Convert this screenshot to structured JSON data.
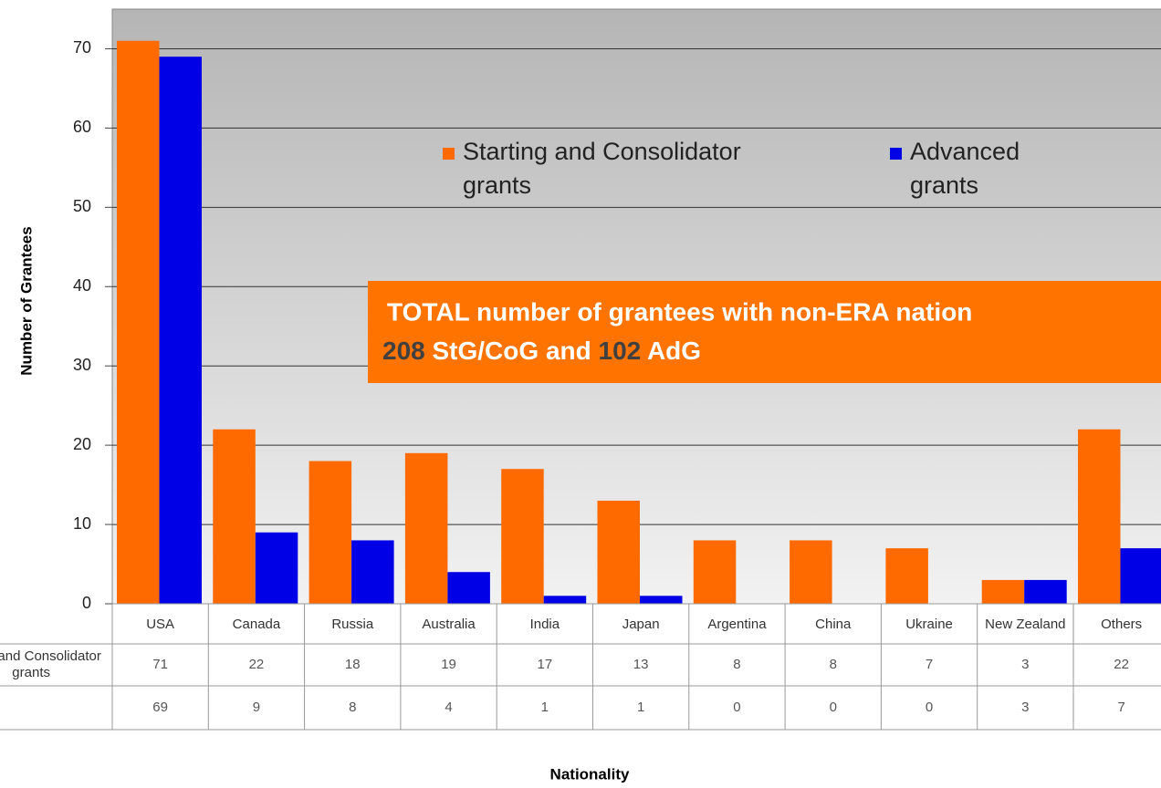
{
  "chart_data": {
    "type": "bar",
    "y_label": "Number of Grantees",
    "x_label": "Nationality",
    "categories": [
      "USA",
      "Canada",
      "Russia",
      "Australia",
      "India",
      "Japan",
      "Argentina",
      "China",
      "Ukraine",
      "New Zealand",
      "Others"
    ],
    "series": [
      {
        "name": "Starting and Consolidator grants",
        "color": "#ff6a00",
        "values": [
          71,
          22,
          18,
          19,
          17,
          13,
          8,
          8,
          7,
          3,
          22
        ]
      },
      {
        "name": "Advanced grants",
        "color": "#0000e6",
        "values": [
          69,
          9,
          8,
          4,
          1,
          1,
          0,
          0,
          0,
          3,
          7
        ]
      }
    ],
    "ylim": [
      0,
      75
    ],
    "yticks": [
      0,
      10,
      20,
      30,
      40,
      50,
      60,
      70
    ],
    "grid": true,
    "annotation": {
      "line1": "TOTAL number of grantees with non-ERA nation",
      "line2": [
        "208",
        " StG/CoG and ",
        "102",
        " AdG"
      ]
    }
  }
}
